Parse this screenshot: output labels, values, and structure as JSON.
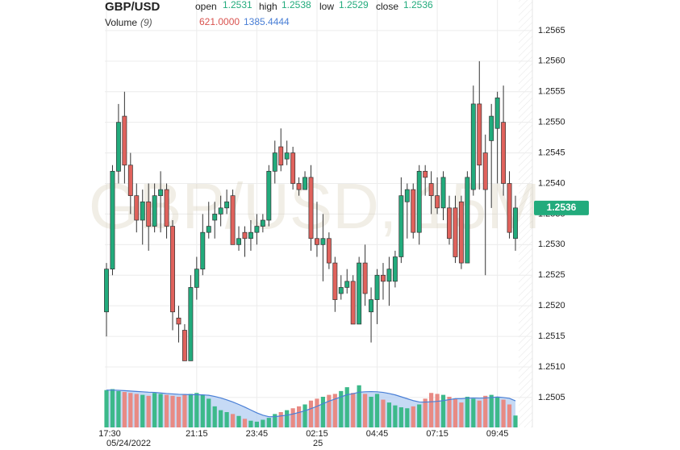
{
  "chart_data": {
    "type": "candlestick",
    "title": "GBP/USD",
    "watermark": "GBP/USD, 15M",
    "ohlc_readout": [
      {
        "name": "open",
        "value": 1.2531
      },
      {
        "name": "high",
        "value": 1.2538
      },
      {
        "name": "low",
        "value": 1.2529
      },
      {
        "name": "close",
        "value": 1.2536
      }
    ],
    "last_price": 1.2536,
    "up_color": "#22ab7c",
    "down_color": "#e0625c",
    "categories": [
      "17:30",
      null,
      null,
      null,
      null,
      null,
      null,
      null,
      null,
      null,
      null,
      null,
      null,
      null,
      null,
      "21:15",
      null,
      null,
      null,
      null,
      null,
      null,
      null,
      null,
      null,
      "23:45",
      null,
      null,
      null,
      null,
      null,
      null,
      null,
      null,
      null,
      "02:15",
      null,
      null,
      null,
      null,
      null,
      null,
      null,
      null,
      null,
      "04:45",
      null,
      null,
      null,
      null,
      null,
      null,
      null,
      null,
      null,
      "07:15",
      null,
      null,
      null,
      null,
      null,
      null,
      null,
      null,
      null,
      "09:45",
      null,
      null,
      null
    ],
    "date_labels": [
      "05/24/2022",
      null,
      null,
      null,
      null,
      null,
      null,
      null,
      null,
      null,
      null,
      null,
      null,
      null,
      null,
      null,
      null,
      null,
      null,
      null,
      null,
      null,
      null,
      null,
      null,
      null,
      null,
      null,
      null,
      null,
      null,
      null,
      null,
      null,
      null,
      "25",
      null,
      null,
      null,
      null,
      null,
      null,
      null,
      null,
      null,
      null,
      null,
      null,
      null,
      null,
      null,
      null,
      null,
      null,
      null,
      null,
      null,
      null,
      null,
      null,
      null,
      null,
      null,
      null,
      null,
      null,
      null,
      null,
      null
    ],
    "open": [
      1.2519,
      1.2526,
      1.2542,
      1.2551,
      1.2543,
      1.2538,
      1.2534,
      1.2537,
      1.2533,
      1.2538,
      1.2539,
      1.2533,
      1.2518,
      1.2516,
      1.2511,
      1.2523,
      1.2526,
      1.2532,
      1.2534,
      1.2535,
      1.2536,
      1.2538,
      1.253,
      1.2532,
      1.2531,
      1.2532,
      1.2533,
      1.2534,
      1.2542,
      1.2546,
      1.2544,
      1.2545,
      1.254,
      1.2539,
      1.2541,
      1.2531,
      1.253,
      1.2531,
      1.2527,
      1.2522,
      1.2523,
      1.2524,
      1.2517,
      1.2527,
      1.2519,
      1.2521,
      1.2525,
      1.2524,
      1.2524,
      1.2528,
      1.2537,
      1.2539,
      1.2532,
      1.2542,
      1.254,
      1.2538,
      1.2536,
      1.2536,
      1.2536,
      1.2537,
      1.2527,
      1.2539,
      1.2553,
      1.2545,
      1.2547,
      1.2549,
      1.255,
      1.254,
      1.2531
    ],
    "high": [
      1.2527,
      1.2543,
      1.2553,
      1.2555,
      1.2545,
      1.254,
      1.2539,
      1.254,
      1.254,
      1.2542,
      1.254,
      1.2534,
      1.252,
      1.2517,
      1.2525,
      1.2528,
      1.2535,
      1.2537,
      1.2537,
      1.2538,
      1.2539,
      1.2539,
      1.2533,
      1.2533,
      1.2534,
      1.2535,
      1.2535,
      1.2543,
      1.2547,
      1.2549,
      1.2547,
      1.2546,
      1.2541,
      1.2542,
      1.2543,
      1.2537,
      1.2535,
      1.2532,
      1.2528,
      1.2525,
      1.2526,
      1.2525,
      1.2528,
      1.253,
      1.2523,
      1.2526,
      1.2527,
      1.2528,
      1.2529,
      1.2541,
      1.254,
      1.254,
      1.2543,
      1.2543,
      1.2542,
      1.2541,
      1.2542,
      1.2538,
      1.2538,
      1.2538,
      1.2542,
      1.2556,
      1.256,
      1.2548,
      1.2553,
      1.2555,
      1.2556,
      1.2542,
      1.2538
    ],
    "low": [
      1.2515,
      1.2525,
      1.254,
      1.254,
      1.2535,
      1.2532,
      1.253,
      1.2529,
      1.2532,
      1.2532,
      1.2531,
      1.2516,
      1.2514,
      1.2511,
      1.2511,
      1.2521,
      1.2525,
      1.2531,
      1.2531,
      1.2533,
      1.2535,
      1.253,
      1.2529,
      1.2528,
      1.2529,
      1.253,
      1.2532,
      1.2533,
      1.254,
      1.2542,
      1.2543,
      1.2539,
      1.2538,
      1.2539,
      1.2529,
      1.2528,
      1.2524,
      1.2526,
      1.2519,
      1.2521,
      1.2522,
      1.2517,
      1.2517,
      1.252,
      1.2514,
      1.2517,
      1.2521,
      1.252,
      1.2523,
      1.2527,
      1.2531,
      1.2531,
      1.253,
      1.2538,
      1.2535,
      1.2535,
      1.2534,
      1.253,
      1.2527,
      1.2526,
      1.2527,
      1.2538,
      1.2539,
      1.2525,
      1.2536,
      1.254,
      1.2538,
      1.2531,
      1.2529
    ],
    "close": [
      1.2526,
      1.2542,
      1.255,
      1.2543,
      1.2538,
      1.2534,
      1.2537,
      1.2533,
      1.2538,
      1.2539,
      1.2533,
      1.2519,
      1.2517,
      1.2511,
      1.2523,
      1.2526,
      1.2532,
      1.2533,
      1.2535,
      1.2536,
      1.2537,
      1.253,
      1.2531,
      1.2531,
      1.2532,
      1.2533,
      1.2534,
      1.2542,
      1.2545,
      1.2543,
      1.2545,
      1.254,
      1.2539,
      1.2541,
      1.2531,
      1.253,
      1.2531,
      1.2527,
      1.2521,
      1.2523,
      1.2524,
      1.2517,
      1.2527,
      1.2522,
      1.2521,
      1.2525,
      1.2524,
      1.2526,
      1.2528,
      1.2538,
      1.2539,
      1.2532,
      1.2542,
      1.2541,
      1.2538,
      1.2536,
      1.2541,
      1.2531,
      1.2528,
      1.2527,
      1.2541,
      1.2553,
      1.2543,
      1.2539,
      1.2551,
      1.2554,
      1.254,
      1.2532,
      1.2536
    ],
    "ylim": [
      1.2498,
      1.257
    ],
    "yticks": [
      1.2505,
      {
        "value": 1.251,
        "label": "1.2510"
      },
      1.2515,
      {
        "value": 1.252,
        "label": "1.2520"
      },
      1.2525,
      {
        "value": 1.253,
        "label": "1.2530"
      },
      1.2535,
      {
        "value": 1.254,
        "label": "1.2540"
      },
      1.2545,
      {
        "value": 1.255,
        "label": "1.2550"
      },
      1.2555,
      {
        "value": 1.256,
        "label": "1.2560"
      },
      1.2565
    ],
    "grid": true,
    "volume": {
      "name": "Volume",
      "period_label": "(9)",
      "ylim": [
        0,
        2400
      ],
      "up_color": "#3cb98a",
      "down_color": "#e88a84",
      "ma_color": "#4a7fd6",
      "ma_fill": "#b3cdf2",
      "values": [
        1950,
        2000,
        1900,
        1850,
        1800,
        1750,
        1700,
        1650,
        1800,
        1750,
        1700,
        1650,
        1600,
        1700,
        1750,
        1800,
        1700,
        1500,
        1100,
        900,
        800,
        700,
        600,
        450,
        350,
        300,
        400,
        500,
        700,
        800,
        900,
        1000,
        1100,
        1200,
        1400,
        1500,
        1600,
        1700,
        1750,
        1900,
        2100,
        1800,
        2200,
        1750,
        1600,
        1750,
        1450,
        1300,
        1150,
        1050,
        1000,
        1100,
        1200,
        1500,
        1800,
        1750,
        1700,
        1600,
        1500,
        1300,
        1600,
        1500,
        1400,
        1650,
        1700,
        1600,
        1450,
        1200,
        621
      ],
      "ma_values": [
        1950,
        1950,
        1940,
        1920,
        1900,
        1880,
        1860,
        1840,
        1830,
        1800,
        1770,
        1750,
        1730,
        1720,
        1710,
        1710,
        1700,
        1680,
        1620,
        1540,
        1440,
        1330,
        1200,
        1060,
        910,
        760,
        640,
        560,
        560,
        600,
        640,
        700,
        780,
        870,
        980,
        1100,
        1240,
        1370,
        1480,
        1590,
        1710,
        1760,
        1840,
        1860,
        1870,
        1860,
        1830,
        1770,
        1700,
        1600,
        1500,
        1400,
        1330,
        1320,
        1340,
        1360,
        1400,
        1450,
        1500,
        1500,
        1530,
        1540,
        1530,
        1540,
        1560,
        1590,
        1560,
        1520,
        1385.4444
      ],
      "readout": [
        {
          "value": 621,
          "label": "621.0000",
          "color": "#d9534f"
        },
        {
          "value": 1385.4444,
          "label": "1385.4444",
          "color": "#4a7fd6"
        }
      ]
    }
  }
}
